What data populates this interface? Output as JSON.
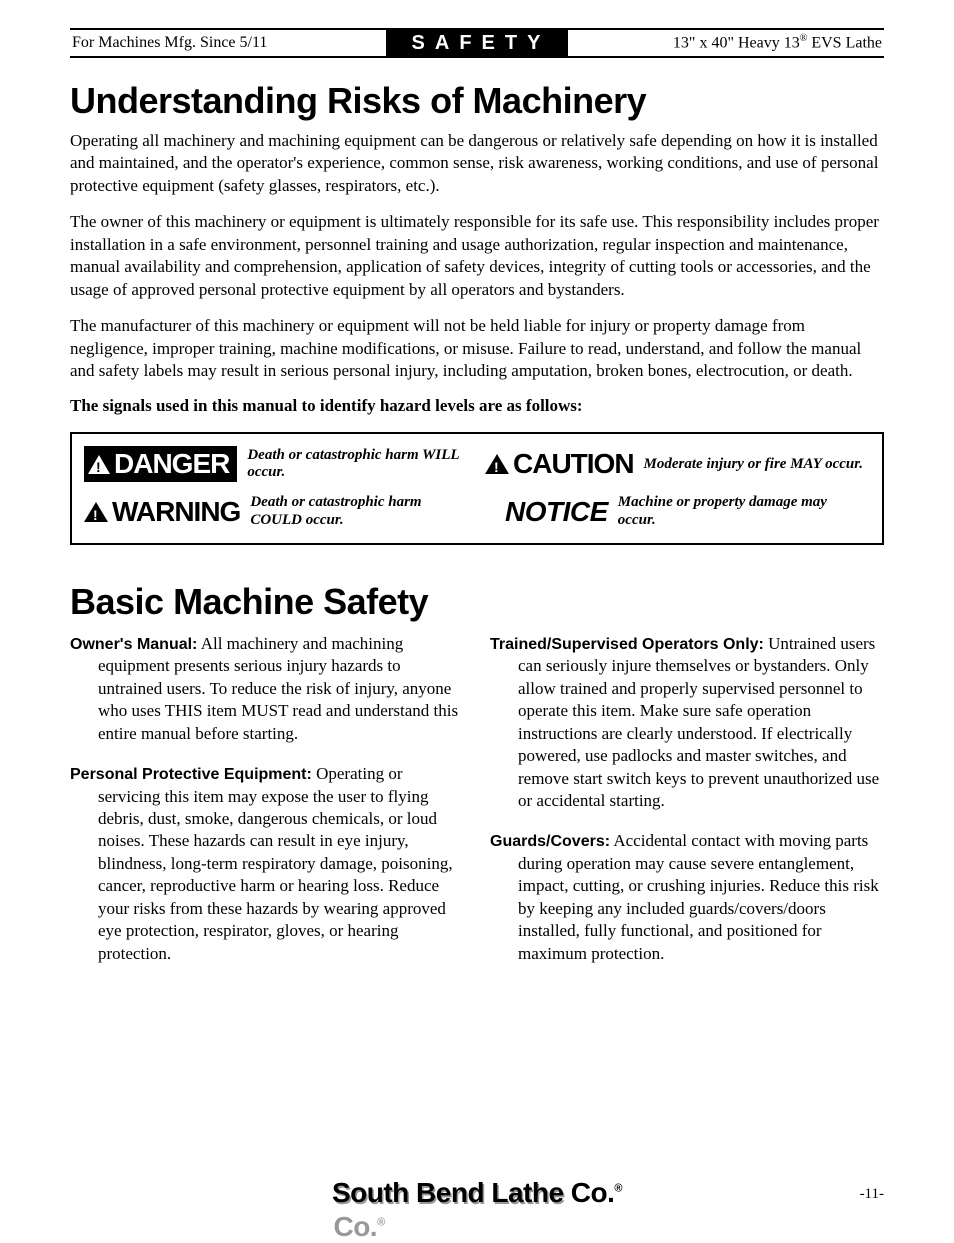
{
  "header": {
    "left": "For Machines Mfg. Since 5/11",
    "center": "SAFETY",
    "right_pre": "13\" x 40\" Heavy 13",
    "right_post": " EVS Lathe"
  },
  "section1": {
    "title": "Understanding Risks of Machinery",
    "para1": "Operating all machinery and machining equipment can be dangerous or relatively safe depending on how it is installed and maintained, and the operator's experience, common sense, risk awareness, working conditions, and use of personal protective equipment (safety glasses, respirators, etc.).",
    "para2": "The owner of this machinery or equipment is ultimately responsible for its safe use. This responsibility includes proper installation in a safe environment, personnel training and usage authorization, regular inspection and maintenance, manual availability and comprehension, application of safety devices, integrity of cutting tools or accessories, and the usage of approved personal protective equipment by all operators and bystanders.",
    "para3": "The manufacturer of this machinery or equipment will not be held liable for injury or property damage from negligence, improper training, machine modifications, or misuse. Failure to read, understand, and follow the manual and safety labels may result in serious personal injury, including amputation, broken bones, electrocution, or death.",
    "signals": "The signals used in this manual to identify hazard levels are as follows:"
  },
  "hazards": {
    "danger": {
      "label": "DANGER",
      "desc": "Death or catastrophic harm WILL occur."
    },
    "warning": {
      "label": "WARNING",
      "desc": "Death or catastrophic harm COULD occur."
    },
    "caution": {
      "label": "CAUTION",
      "desc": "Moderate injury or fire MAY occur."
    },
    "notice": {
      "label": "NOTICE",
      "desc": "Machine or property damage may occur."
    }
  },
  "section2": {
    "title": "Basic Machine Safety",
    "left": [
      {
        "lead": "Owner's Manual:",
        "body": " All machinery and machining equipment presents serious injury hazards to untrained users. To reduce the risk of injury, anyone who uses THIS item MUST read and understand this entire manual before starting."
      },
      {
        "lead": "Personal Protective Equipment:",
        "body": " Operating or servicing this item may expose the user to flying debris, dust, smoke, dangerous chemicals, or loud noises. These hazards can result in eye injury, blindness, long-term respiratory damage, poisoning, cancer, reproductive harm or hearing loss. Reduce your risks from these hazards by wearing approved eye protection, respirator, gloves, or hearing protection."
      }
    ],
    "right": [
      {
        "lead": "Trained/Supervised Operators Only:",
        "body": " Untrained users can seriously injure themselves or bystanders. Only allow trained and properly supervised personnel to operate this item. Make sure safe operation instructions are clearly understood. If electrically powered, use padlocks and master switches, and remove start switch keys to prevent unauthorized use or accidental starting."
      },
      {
        "lead": "Guards/Covers:",
        "body": " Accidental contact with moving parts during operation may cause severe entanglement, impact, cutting, or crushing injuries. Reduce this risk by keeping any included guards/covers/doors installed, fully functional, and positioned for maximum protection."
      }
    ]
  },
  "footer": {
    "company": "South Bend Lathe Co.",
    "page": "-11-"
  },
  "colors": {
    "text": "#000000",
    "background": "#ffffff",
    "shadow": "#999999"
  }
}
